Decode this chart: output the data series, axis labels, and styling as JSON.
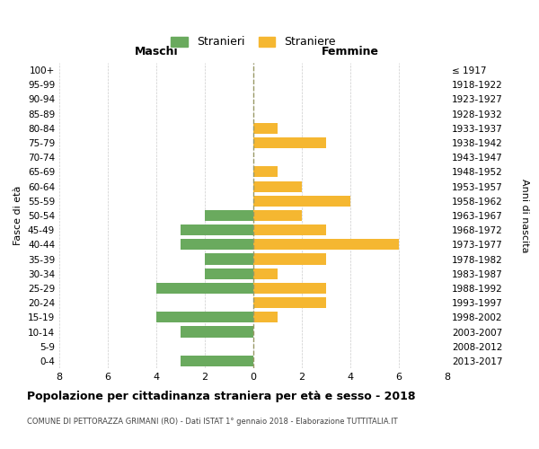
{
  "age_groups": [
    "100+",
    "95-99",
    "90-94",
    "85-89",
    "80-84",
    "75-79",
    "70-74",
    "65-69",
    "60-64",
    "55-59",
    "50-54",
    "45-49",
    "40-44",
    "35-39",
    "30-34",
    "25-29",
    "20-24",
    "15-19",
    "10-14",
    "5-9",
    "0-4"
  ],
  "birth_years": [
    "≤ 1917",
    "1918-1922",
    "1923-1927",
    "1928-1932",
    "1933-1937",
    "1938-1942",
    "1943-1947",
    "1948-1952",
    "1953-1957",
    "1958-1962",
    "1963-1967",
    "1968-1972",
    "1973-1977",
    "1978-1982",
    "1983-1987",
    "1988-1992",
    "1993-1997",
    "1998-2002",
    "2003-2007",
    "2008-2012",
    "2013-2017"
  ],
  "males": [
    0,
    0,
    0,
    0,
    0,
    0,
    0,
    0,
    0,
    0,
    2,
    3,
    3,
    2,
    2,
    4,
    0,
    4,
    3,
    0,
    3
  ],
  "females": [
    0,
    0,
    0,
    0,
    1,
    3,
    0,
    1,
    2,
    4,
    2,
    3,
    6,
    3,
    1,
    3,
    3,
    1,
    0,
    0,
    0
  ],
  "male_color": "#6aaa5e",
  "female_color": "#f5b731",
  "background_color": "#ffffff",
  "grid_color": "#cccccc",
  "dashed_line_color": "#999966",
  "title": "Popolazione per cittadinanza straniera per età e sesso - 2018",
  "subtitle": "COMUNE DI PETTORAZZA GRIMANI (RO) - Dati ISTAT 1° gennaio 2018 - Elaborazione TUTTITALIA.IT",
  "label_maschi": "Maschi",
  "label_femmine": "Femmine",
  "ylabel_left": "Fasce di età",
  "ylabel_right": "Anni di nascita",
  "legend_male": "Stranieri",
  "legend_female": "Straniere",
  "xlim": 8,
  "bar_height": 0.75,
  "figsize": [
    6.0,
    5.0
  ],
  "dpi": 100
}
